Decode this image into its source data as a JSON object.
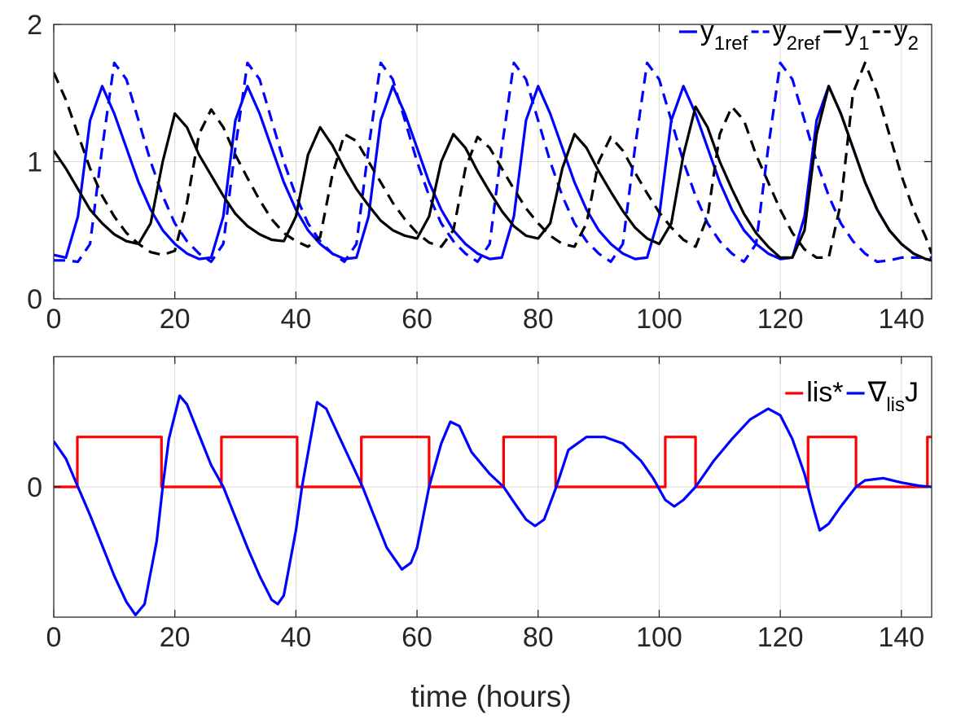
{
  "chart_data": [
    {
      "type": "line",
      "xlabel": "",
      "ylabel": "",
      "xlim": [
        0,
        145
      ],
      "ylim": [
        0,
        2
      ],
      "xticks": [
        0,
        20,
        40,
        60,
        80,
        100,
        120,
        140
      ],
      "yticks": [
        0,
        1,
        2
      ],
      "xtick_labels": [
        "0",
        "20",
        "40",
        "60",
        "80",
        "100",
        "120",
        "140"
      ],
      "ytick_labels": [
        "0",
        "1",
        "2"
      ],
      "grid": true,
      "legend_position": "top-right",
      "series": [
        {
          "name": "y_1ref",
          "legend": {
            "main": "y",
            "sub": "1ref"
          },
          "color": "#0000ff",
          "dash": "solid",
          "x": [
            0,
            2,
            4,
            6,
            8,
            10,
            12,
            14,
            16,
            18,
            20,
            22,
            24,
            26,
            28,
            30,
            32,
            34,
            36,
            38,
            40,
            42,
            44,
            46,
            48,
            50,
            52,
            54,
            56,
            58,
            60,
            62,
            64,
            66,
            68,
            70,
            72,
            74,
            76,
            78,
            80,
            82,
            84,
            86,
            88,
            90,
            92,
            94,
            96,
            98,
            100,
            102,
            104,
            106,
            108,
            110,
            112,
            114,
            116,
            118,
            120,
            122,
            124,
            126,
            128,
            130,
            132,
            134,
            136,
            138,
            140,
            142,
            144,
            145
          ],
          "y": [
            0.32,
            0.3,
            0.6,
            1.3,
            1.55,
            1.35,
            1.1,
            0.85,
            0.65,
            0.5,
            0.4,
            0.33,
            0.29,
            0.3,
            0.6,
            1.3,
            1.55,
            1.35,
            1.1,
            0.85,
            0.65,
            0.5,
            0.4,
            0.33,
            0.29,
            0.3,
            0.6,
            1.3,
            1.55,
            1.35,
            1.1,
            0.85,
            0.65,
            0.5,
            0.4,
            0.33,
            0.29,
            0.3,
            0.6,
            1.3,
            1.55,
            1.35,
            1.1,
            0.85,
            0.65,
            0.5,
            0.4,
            0.33,
            0.29,
            0.3,
            0.6,
            1.3,
            1.55,
            1.35,
            1.1,
            0.85,
            0.65,
            0.5,
            0.4,
            0.33,
            0.29,
            0.3,
            0.6,
            1.3,
            1.55,
            1.35,
            1.1,
            0.85,
            0.65,
            0.5,
            0.4,
            0.33,
            0.29,
            0.28
          ]
        },
        {
          "name": "y_2ref",
          "legend": {
            "main": "y",
            "sub": "2ref"
          },
          "color": "#0000ff",
          "dash": "dashed",
          "x": [
            0,
            2,
            4,
            6,
            8,
            10,
            12,
            14,
            16,
            18,
            20,
            22,
            24,
            26,
            28,
            30,
            32,
            34,
            36,
            38,
            40,
            42,
            44,
            46,
            48,
            50,
            52,
            54,
            56,
            58,
            60,
            62,
            64,
            66,
            68,
            70,
            72,
            74,
            76,
            78,
            80,
            82,
            84,
            86,
            88,
            90,
            92,
            94,
            96,
            98,
            100,
            102,
            104,
            106,
            108,
            110,
            112,
            114,
            116,
            118,
            120,
            122,
            124,
            126,
            128,
            130,
            132,
            134,
            136,
            138,
            140,
            142,
            144,
            145
          ],
          "y": [
            0.28,
            0.28,
            0.27,
            0.4,
            1.1,
            1.72,
            1.6,
            1.3,
            1.0,
            0.75,
            0.55,
            0.42,
            0.33,
            0.27,
            0.4,
            1.1,
            1.72,
            1.6,
            1.3,
            1.0,
            0.75,
            0.55,
            0.42,
            0.33,
            0.27,
            0.4,
            1.1,
            1.72,
            1.6,
            1.3,
            1.0,
            0.75,
            0.55,
            0.42,
            0.33,
            0.27,
            0.4,
            1.1,
            1.72,
            1.6,
            1.3,
            1.0,
            0.75,
            0.55,
            0.42,
            0.33,
            0.27,
            0.4,
            1.1,
            1.72,
            1.6,
            1.3,
            1.0,
            0.75,
            0.55,
            0.42,
            0.33,
            0.27,
            0.4,
            1.1,
            1.72,
            1.6,
            1.3,
            1.0,
            0.75,
            0.55,
            0.42,
            0.33,
            0.27,
            0.28,
            0.3,
            0.3,
            0.3,
            0.3
          ]
        },
        {
          "name": "y_1",
          "legend": {
            "main": "y",
            "sub": "1"
          },
          "color": "#000000",
          "dash": "solid",
          "x": [
            0,
            2,
            4,
            6,
            8,
            10,
            12,
            14,
            16,
            18,
            20,
            22,
            24,
            26,
            28,
            30,
            32,
            34,
            36,
            38,
            40,
            42,
            44,
            46,
            48,
            50,
            52,
            54,
            56,
            58,
            60,
            62,
            64,
            66,
            68,
            70,
            72,
            74,
            76,
            78,
            80,
            82,
            84,
            86,
            88,
            90,
            92,
            94,
            96,
            98,
            100,
            102,
            104,
            106,
            108,
            110,
            112,
            114,
            116,
            118,
            120,
            122,
            124,
            126,
            128,
            130,
            132,
            134,
            136,
            138,
            140,
            142,
            144,
            145
          ],
          "y": [
            1.08,
            0.95,
            0.8,
            0.65,
            0.55,
            0.47,
            0.42,
            0.4,
            0.55,
            1.0,
            1.35,
            1.25,
            1.05,
            0.9,
            0.75,
            0.62,
            0.53,
            0.47,
            0.43,
            0.42,
            0.6,
            1.05,
            1.25,
            1.12,
            0.95,
            0.8,
            0.68,
            0.57,
            0.5,
            0.46,
            0.44,
            0.6,
            1.0,
            1.2,
            1.1,
            0.93,
            0.78,
            0.64,
            0.53,
            0.46,
            0.44,
            0.55,
            0.95,
            1.2,
            1.1,
            0.93,
            0.78,
            0.64,
            0.52,
            0.44,
            0.4,
            0.55,
            1.05,
            1.4,
            1.25,
            1.0,
            0.8,
            0.62,
            0.48,
            0.38,
            0.3,
            0.3,
            0.5,
            1.2,
            1.55,
            1.35,
            1.1,
            0.85,
            0.65,
            0.5,
            0.4,
            0.33,
            0.29,
            0.28
          ]
        },
        {
          "name": "y_2",
          "legend": {
            "main": "y",
            "sub": "2"
          },
          "color": "#000000",
          "dash": "dashed",
          "x": [
            0,
            2,
            4,
            6,
            8,
            10,
            12,
            14,
            16,
            18,
            20,
            22,
            24,
            26,
            28,
            30,
            32,
            34,
            36,
            38,
            40,
            42,
            44,
            46,
            48,
            50,
            52,
            54,
            56,
            58,
            60,
            62,
            64,
            66,
            68,
            70,
            72,
            74,
            76,
            78,
            80,
            82,
            84,
            86,
            88,
            90,
            92,
            94,
            96,
            98,
            100,
            102,
            104,
            106,
            108,
            110,
            112,
            114,
            116,
            118,
            120,
            122,
            124,
            126,
            128,
            130,
            132,
            134,
            136,
            138,
            140,
            142,
            144,
            145
          ],
          "y": [
            1.65,
            1.45,
            1.2,
            0.95,
            0.75,
            0.6,
            0.48,
            0.4,
            0.34,
            0.32,
            0.35,
            0.7,
            1.2,
            1.38,
            1.25,
            1.05,
            0.88,
            0.72,
            0.58,
            0.48,
            0.42,
            0.38,
            0.45,
            0.9,
            1.2,
            1.15,
            1.0,
            0.85,
            0.7,
            0.58,
            0.48,
            0.41,
            0.38,
            0.5,
            0.95,
            1.18,
            1.1,
            0.95,
            0.8,
            0.66,
            0.55,
            0.46,
            0.4,
            0.38,
            0.55,
            1.0,
            1.18,
            1.08,
            0.92,
            0.77,
            0.63,
            0.52,
            0.43,
            0.38,
            0.6,
            1.2,
            1.4,
            1.3,
            1.05,
            0.85,
            0.65,
            0.48,
            0.36,
            0.3,
            0.3,
            0.7,
            1.5,
            1.72,
            1.5,
            1.2,
            0.9,
            0.65,
            0.45,
            0.33
          ]
        }
      ]
    },
    {
      "type": "line",
      "xlabel": "time (hours)",
      "ylabel": "",
      "xlim": [
        0,
        145
      ],
      "ylim": [
        -0.6,
        0.6
      ],
      "xticks": [
        0,
        20,
        40,
        60,
        80,
        100,
        120,
        140
      ],
      "yticks": [
        0
      ],
      "xtick_labels": [
        "0",
        "20",
        "40",
        "60",
        "80",
        "100",
        "120",
        "140"
      ],
      "ytick_labels": [
        "0"
      ],
      "grid": true,
      "legend_position": "top-right",
      "series": [
        {
          "name": "lis*",
          "legend": {
            "main": "lis*"
          },
          "color": "#ff0000",
          "dash": "solid",
          "step": true,
          "x": [
            0,
            3.9,
            3.9,
            17.8,
            17.8,
            27.7,
            27.7,
            40.2,
            40.2,
            50.8,
            50.8,
            62.0,
            62.0,
            74.3,
            74.3,
            82.9,
            82.9,
            101.0,
            101.0,
            106.0,
            106.0,
            124.6,
            124.6,
            132.5,
            132.5,
            144.3,
            144.3,
            145
          ],
          "y": [
            0,
            0,
            0.23,
            0.23,
            0,
            0,
            0.23,
            0.23,
            0,
            0,
            0.23,
            0.23,
            0,
            0,
            0.23,
            0.23,
            0,
            0,
            0.23,
            0.23,
            0,
            0,
            0.23,
            0.23,
            0,
            0,
            0.23,
            0.23
          ]
        },
        {
          "name": "grad_lis_J",
          "legend": {
            "main": "∇",
            "sub": "lis",
            "suffix": "J"
          },
          "color": "#0000ff",
          "dash": "solid",
          "x": [
            0,
            2,
            4,
            6,
            8,
            10,
            12,
            13.5,
            15,
            17,
            18,
            19,
            20.8,
            22,
            24,
            26,
            28,
            30,
            32,
            34,
            36,
            37,
            38,
            40,
            41,
            43.5,
            45,
            47,
            49,
            51,
            53,
            55,
            57.5,
            59,
            60,
            62,
            64,
            65.5,
            67,
            69,
            72,
            74.3,
            76,
            78,
            79.5,
            81,
            83,
            85,
            88,
            91,
            94,
            97,
            99,
            101,
            102.5,
            104,
            106,
            109,
            112,
            115,
            118,
            120,
            122,
            124,
            125.5,
            126.5,
            128,
            130,
            132.5,
            134,
            137,
            140,
            143,
            145
          ],
          "y": [
            0.21,
            0.13,
            0.0,
            -0.13,
            -0.27,
            -0.41,
            -0.53,
            -0.59,
            -0.54,
            -0.25,
            0.0,
            0.22,
            0.42,
            0.38,
            0.24,
            0.1,
            0.0,
            -0.14,
            -0.28,
            -0.41,
            -0.52,
            -0.54,
            -0.5,
            -0.2,
            0.0,
            0.39,
            0.36,
            0.24,
            0.12,
            0.0,
            -0.14,
            -0.28,
            -0.38,
            -0.35,
            -0.28,
            0.0,
            0.2,
            0.3,
            0.28,
            0.16,
            0.06,
            0.0,
            -0.07,
            -0.15,
            -0.18,
            -0.15,
            0.0,
            0.17,
            0.23,
            0.23,
            0.2,
            0.12,
            0.04,
            -0.06,
            -0.09,
            -0.06,
            0.0,
            0.12,
            0.22,
            0.31,
            0.36,
            0.33,
            0.22,
            0.06,
            -0.1,
            -0.2,
            -0.17,
            -0.09,
            0.0,
            0.03,
            0.04,
            0.02,
            0.005,
            0.0
          ]
        }
      ]
    }
  ]
}
